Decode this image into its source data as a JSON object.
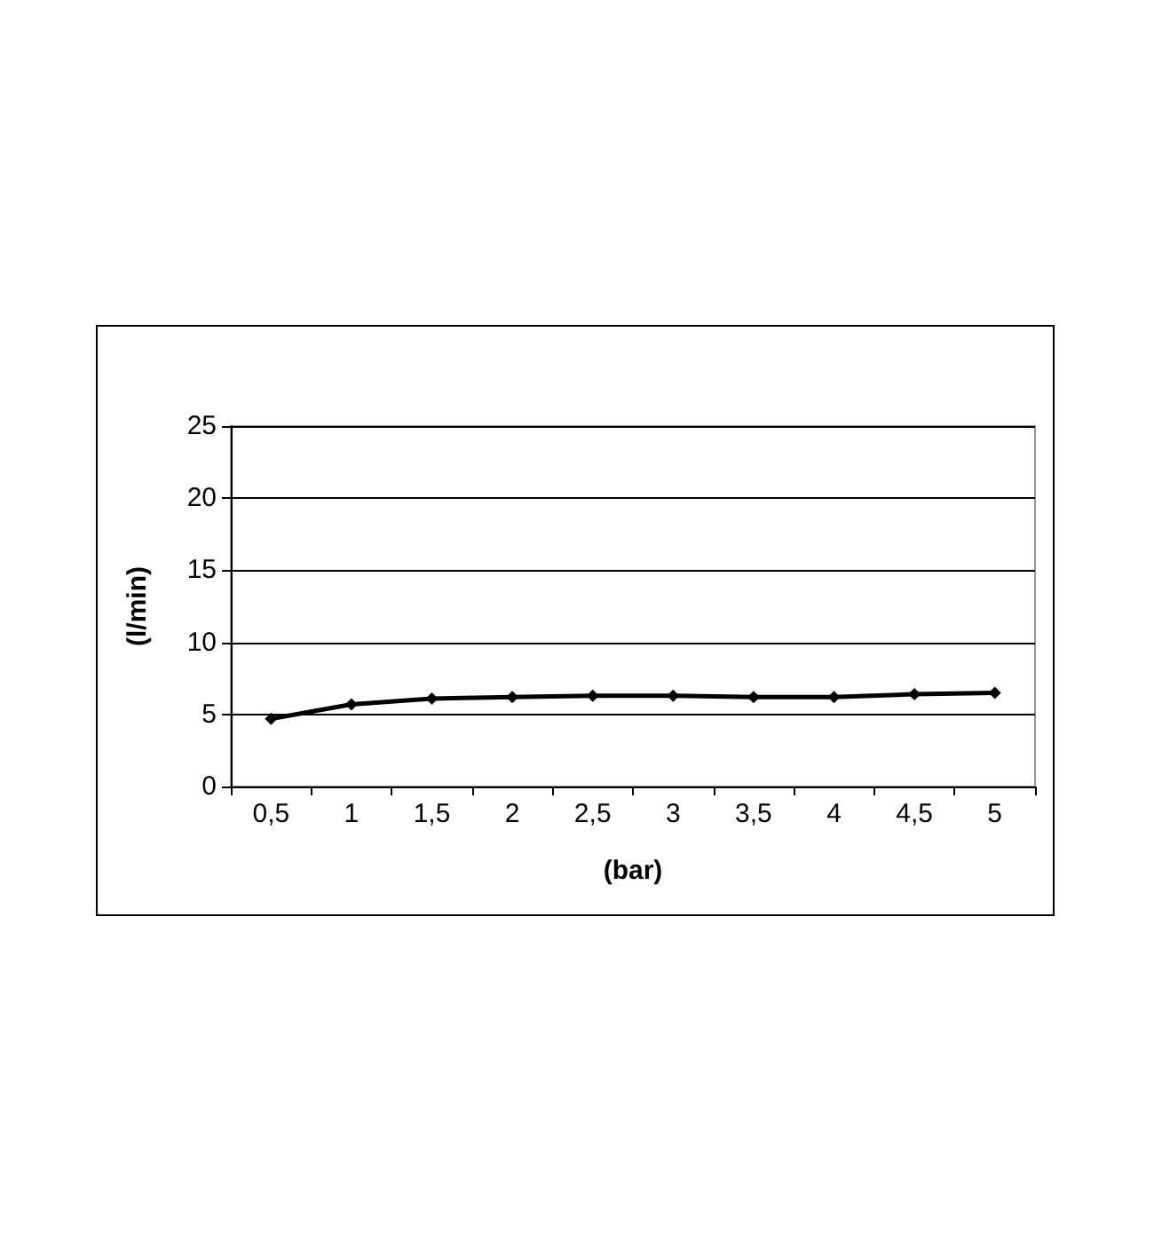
{
  "chart_data": {
    "type": "line",
    "xlabel": "(bar)",
    "ylabel": "(l/min)",
    "categories": [
      "0,5",
      "1",
      "1,5",
      "2",
      "2,5",
      "3",
      "3,5",
      "4",
      "4,5",
      "5"
    ],
    "series": [
      {
        "color": "#000000",
        "values": [
          4.7,
          5.7,
          6.1,
          6.2,
          6.3,
          6.3,
          6.2,
          6.2,
          6.4,
          6.5
        ]
      }
    ],
    "ylim": [
      0,
      25
    ],
    "yticks": [
      0,
      5,
      10,
      15,
      20,
      25
    ],
    "grid": "y",
    "marker": "diamond",
    "line_style": "solid"
  }
}
